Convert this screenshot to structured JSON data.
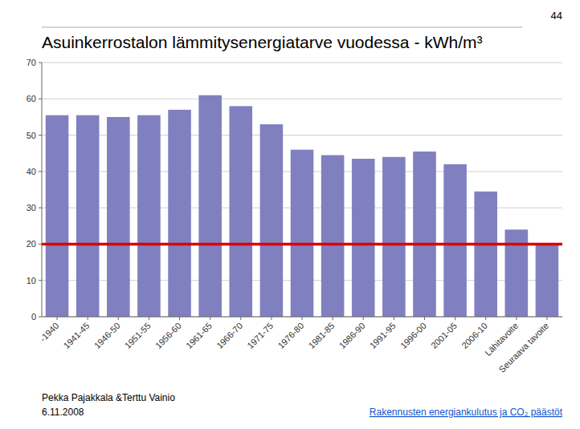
{
  "chart_data": {
    "type": "bar",
    "title": "Asuinkerrostalon lämmitysenergiatarve vuodessa - kWh/m³",
    "categories": [
      "-1940",
      "1941-45",
      "1946-50",
      "1951-55",
      "1956-60",
      "1961-65",
      "1966-70",
      "1971-75",
      "1976-80",
      "1981-85",
      "1986-90",
      "1991-95",
      "1996-00",
      "2001-05",
      "2006-10",
      "Lähitavoite",
      "Seuraava tavoite"
    ],
    "values": [
      55.5,
      55.5,
      55.0,
      55.5,
      57.0,
      61.0,
      58.0,
      53.0,
      46.0,
      44.5,
      43.5,
      44.0,
      45.5,
      42.0,
      34.5,
      24.0,
      20.0
    ],
    "color": "#8080c0",
    "reference_line": {
      "value": 20,
      "color": "#dd0000"
    },
    "ylim": [
      0,
      70
    ],
    "yticks": [
      0,
      10,
      20,
      30,
      40,
      50,
      60,
      70
    ],
    "grid": true,
    "page_number": "44",
    "footer_left": [
      "Pekka Pajakkala &Terttu Vainio",
      "6.11.2008"
    ],
    "footer_right": "Rakennusten energiankulutus ja CO₂ päästöt"
  }
}
